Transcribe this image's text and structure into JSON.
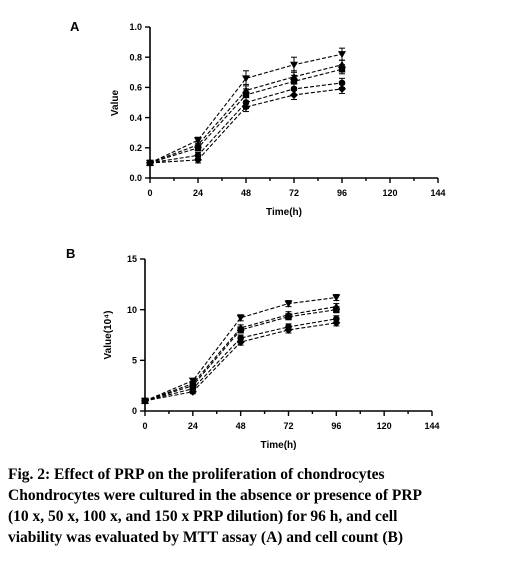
{
  "caption": {
    "lines": [
      "Fig. 2: Effect of PRP on the proliferation of chondrocytes",
      "Chondrocytes were cultured in the absence or presence of PRP",
      "(10 x, 50 x, 100 x, and 150 x PRP dilution) for 96 h, and cell",
      "viability was evaluated by MTT assay (A) and cell count (B)"
    ]
  },
  "chart_data": [
    {
      "type": "line",
      "panel_label": "A",
      "xlabel": "Time(h)",
      "ylabel": "Value",
      "x": [
        0,
        24,
        48,
        72,
        96
      ],
      "xlim": [
        0,
        144
      ],
      "xticks": [
        0,
        24,
        48,
        72,
        96,
        120,
        144
      ],
      "ylim": [
        0,
        1.0
      ],
      "yticks": [
        "0.0",
        "0.2",
        "0.4",
        "0.6",
        "0.8",
        "1.0"
      ],
      "grid": false,
      "series": [
        {
          "marker": "triangle-down",
          "values": [
            0.1,
            0.25,
            0.66,
            0.75,
            0.82
          ],
          "err": [
            0.01,
            0.02,
            0.05,
            0.05,
            0.04
          ]
        },
        {
          "marker": "triangle-up",
          "values": [
            0.1,
            0.22,
            0.58,
            0.67,
            0.75
          ],
          "err": [
            0.01,
            0.02,
            0.04,
            0.04,
            0.03
          ]
        },
        {
          "marker": "square",
          "values": [
            0.1,
            0.2,
            0.55,
            0.64,
            0.72
          ],
          "err": [
            0.01,
            0.02,
            0.04,
            0.04,
            0.03
          ]
        },
        {
          "marker": "circle",
          "values": [
            0.1,
            0.15,
            0.5,
            0.59,
            0.63
          ],
          "err": [
            0.01,
            0.02,
            0.04,
            0.04,
            0.03
          ]
        },
        {
          "marker": "diamond",
          "values": [
            0.1,
            0.12,
            0.47,
            0.55,
            0.59
          ],
          "err": [
            0.01,
            0.02,
            0.03,
            0.03,
            0.03
          ]
        }
      ]
    },
    {
      "type": "line",
      "panel_label": "B",
      "xlabel": "Time(h)",
      "ylabel": "Value(10⁴)",
      "x": [
        0,
        24,
        48,
        72,
        96
      ],
      "xlim": [
        0,
        144
      ],
      "xticks": [
        0,
        24,
        48,
        72,
        96,
        120,
        144
      ],
      "ylim": [
        0,
        15
      ],
      "yticks": [
        "0",
        "5",
        "10",
        "15"
      ],
      "grid": false,
      "series": [
        {
          "marker": "triangle-down",
          "values": [
            1.0,
            3.0,
            9.2,
            10.6,
            11.2
          ],
          "err": [
            0.1,
            0.2,
            0.3,
            0.3,
            0.3
          ]
        },
        {
          "marker": "triangle-up",
          "values": [
            1.0,
            2.7,
            8.2,
            9.5,
            10.3
          ],
          "err": [
            0.1,
            0.2,
            0.3,
            0.3,
            0.3
          ]
        },
        {
          "marker": "square",
          "values": [
            1.0,
            2.5,
            8.0,
            9.3,
            10.0
          ],
          "err": [
            0.1,
            0.2,
            0.3,
            0.3,
            0.3
          ]
        },
        {
          "marker": "circle",
          "values": [
            1.0,
            2.2,
            7.2,
            8.3,
            9.1
          ],
          "err": [
            0.1,
            0.2,
            0.3,
            0.3,
            0.3
          ]
        },
        {
          "marker": "diamond",
          "values": [
            1.0,
            1.9,
            6.8,
            8.0,
            8.7
          ],
          "err": [
            0.1,
            0.2,
            0.3,
            0.3,
            0.3
          ]
        }
      ]
    }
  ]
}
